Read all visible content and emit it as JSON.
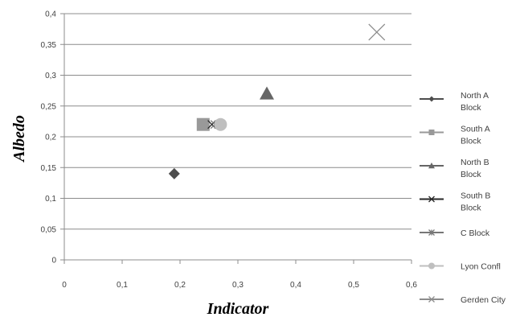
{
  "chart_data": {
    "type": "scatter",
    "title": "",
    "xlabel": "Indicator",
    "ylabel": "Albedo",
    "xlim": [
      0,
      0.6
    ],
    "ylim": [
      0,
      0.4
    ],
    "x_ticks": [
      "0",
      "0,1",
      "0,2",
      "0,3",
      "0,4",
      "0,5",
      "0,6"
    ],
    "y_ticks": [
      "0",
      "0,05",
      "0,1",
      "0,15",
      "0,2",
      "0,25",
      "0,3",
      "0,35",
      "0,4"
    ],
    "grid": "horizontal",
    "legend_position": "right",
    "series": [
      {
        "name": "North A Block",
        "marker": "diamond",
        "color": "#4d4d4d",
        "x": 0.19,
        "y": 0.14
      },
      {
        "name": "South A Block",
        "marker": "square",
        "color": "#999999",
        "x": 0.24,
        "y": 0.22
      },
      {
        "name": "North B Block",
        "marker": "triangle",
        "color": "#666666",
        "x": 0.35,
        "y": 0.27
      },
      {
        "name": "South B Block",
        "marker": "x",
        "color": "#262626",
        "x": 0.255,
        "y": 0.22
      },
      {
        "name": "C Block",
        "marker": "asterisk",
        "color": "#777777",
        "x": 0.26,
        "y": 0.22
      },
      {
        "name": "Lyon Confl",
        "marker": "circle",
        "color": "#bfbfbf",
        "x": 0.27,
        "y": 0.22
      },
      {
        "name": "Gerden City",
        "marker": "x",
        "color": "#8c8c8c",
        "x": 0.54,
        "y": 0.37
      }
    ]
  }
}
